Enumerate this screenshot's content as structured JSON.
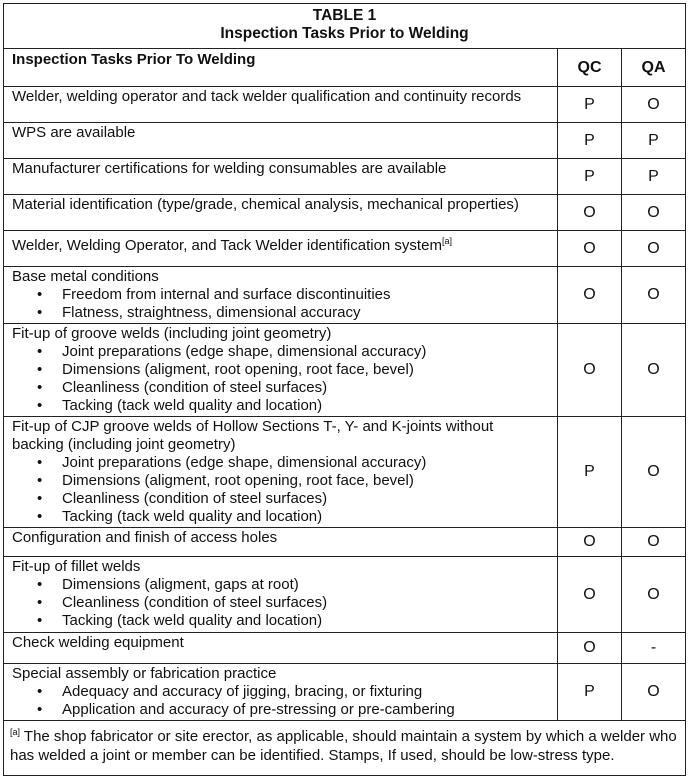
{
  "table": {
    "title_line1": "TABLE 1",
    "title_line2": "Inspection Tasks Prior to Welding",
    "header": {
      "task": "Inspection Tasks Prior To Welding",
      "qc": "QC",
      "qa": "QA"
    },
    "rows": [
      {
        "task": "Welder, welding operator and tack welder qualification and continuity records",
        "sup": "",
        "bullets": [],
        "qc": "P",
        "qa": "O"
      },
      {
        "task": "WPS are available",
        "sup": "",
        "bullets": [],
        "qc": "P",
        "qa": "P"
      },
      {
        "task": "Manufacturer certifications for welding consumables are available",
        "sup": "",
        "bullets": [],
        "qc": "P",
        "qa": "P"
      },
      {
        "task": "Material identification (type/grade, chemical analysis, mechanical properties)",
        "sup": "",
        "bullets": [],
        "qc": "O",
        "qa": "O"
      },
      {
        "task": "Welder, Welding Operator, and Tack Welder identification system",
        "sup": "[a]",
        "bullets": [],
        "qc": "O",
        "qa": "O"
      },
      {
        "task": "Base metal conditions",
        "sup": "",
        "bullets": [
          "Freedom from internal and surface discontinuities",
          "Flatness, straightness, dimensional accuracy"
        ],
        "qc": "O",
        "qa": "O"
      },
      {
        "task": "Fit-up of groove welds (including joint geometry)",
        "sup": "",
        "bullets": [
          "Joint preparations (edge shape, dimensional accuracy)",
          "Dimensions (aligment, root opening, root face, bevel)",
          "Cleanliness (condition of steel surfaces)",
          "Tacking (tack weld quality and location)"
        ],
        "qc": "O",
        "qa": "O"
      },
      {
        "task": "Fit-up of CJP groove welds of Hollow Sections T-, Y- and K-joints without backing (including joint geometry)",
        "sup": "",
        "bullets": [
          "Joint preparations (edge shape, dimensional accuracy)",
          "Dimensions (aligment, root opening, root face, bevel)",
          "Cleanliness (condition of steel surfaces)",
          "Tacking (tack weld quality and location)"
        ],
        "qc": "P",
        "qa": "O"
      },
      {
        "task": "Configuration and finish of access holes",
        "sup": "",
        "bullets": [],
        "qc": "O",
        "qa": "O"
      },
      {
        "task": "Fit-up of fillet welds",
        "sup": "",
        "bullets": [
          "Dimensions (aligment, gaps at root)",
          "Cleanliness (condition of steel surfaces)",
          "Tacking (tack weld quality and location)"
        ],
        "qc": "O",
        "qa": "O"
      },
      {
        "task": "Check welding equipment",
        "sup": "",
        "bullets": [],
        "qc": "O",
        "qa": "-"
      },
      {
        "task": "Special assembly or fabrication practice",
        "sup": "",
        "bullets": [
          "Adequacy and accuracy of jigging, bracing, or fixturing",
          "Application and accuracy of pre-stressing or pre-cambering"
        ],
        "qc": "P",
        "qa": "O"
      }
    ],
    "footnote": {
      "mark": "[a]",
      "text": " The shop fabricator or site erector, as applicable, should maintain a system by which a welder who has welded a joint or member can be identified. Stamps, If used, should be low-stress type."
    }
  }
}
